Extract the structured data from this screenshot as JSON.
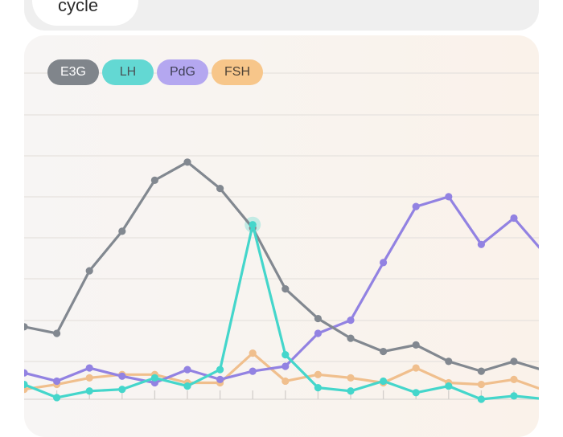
{
  "header": {
    "title_fragment": "cycle"
  },
  "chart_data": {
    "type": "line",
    "title": "",
    "xlabel": "",
    "ylabel": "",
    "x": [
      0,
      1,
      2,
      3,
      4,
      5,
      6,
      7,
      8,
      9,
      10,
      11,
      12,
      13,
      14,
      15,
      16
    ],
    "ylim": [
      0,
      200
    ],
    "xlim": [
      0,
      16
    ],
    "grid": true,
    "legend_position": "top-left",
    "series": [
      {
        "name": "E3G",
        "color": "#828890",
        "x": [
          0,
          1,
          2,
          3,
          4,
          5,
          6,
          7,
          8,
          9,
          10,
          11,
          12,
          13,
          14,
          15,
          16
        ],
        "values": [
          44,
          40,
          78,
          102,
          133,
          144,
          128,
          104,
          67,
          49,
          37,
          29,
          33,
          23,
          17,
          23,
          17
        ]
      },
      {
        "name": "LH",
        "color": "#44d6cb",
        "x": [
          0,
          1,
          2,
          3,
          4,
          5,
          6,
          7,
          8,
          9,
          10,
          11,
          12,
          13,
          14,
          15,
          16
        ],
        "values": [
          9,
          1,
          5,
          6,
          13,
          8,
          18,
          106,
          27,
          7,
          5,
          11,
          4,
          8,
          0,
          2,
          0
        ]
      },
      {
        "name": "PdG",
        "color": "#9282e2",
        "x": [
          0,
          1,
          2,
          3,
          4,
          5,
          6,
          7,
          8,
          9,
          10,
          11,
          12,
          13,
          14,
          15,
          16
        ],
        "values": [
          16,
          11,
          19,
          14,
          10,
          18,
          12,
          17,
          20,
          40,
          48,
          83,
          117,
          123,
          94,
          110,
          87
        ]
      },
      {
        "name": "FSH",
        "color": "#f0bf8d",
        "x": [
          0,
          1,
          2,
          3,
          4,
          5,
          6,
          7,
          8,
          9,
          10,
          11,
          12,
          13,
          14,
          15,
          16
        ],
        "values": [
          6,
          9,
          13,
          15,
          15,
          10,
          10,
          28,
          11,
          15,
          13,
          10,
          19,
          10,
          9,
          12,
          5
        ]
      }
    ]
  }
}
